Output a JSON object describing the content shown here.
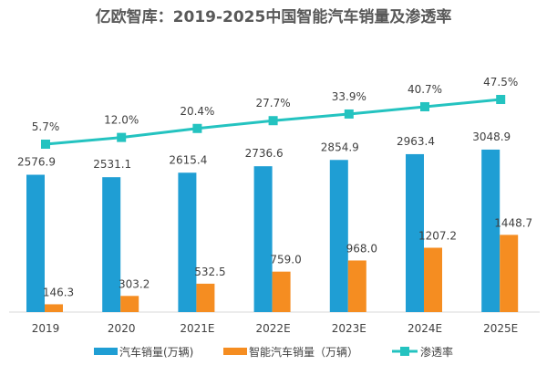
{
  "chart_data": {
    "type": "bar",
    "title": "亿欧智库：2019-2025中国智能汽车销量及渗透率",
    "categories": [
      "2019",
      "2020",
      "2021E",
      "2022E",
      "2023E",
      "2024E",
      "2025E"
    ],
    "series": [
      {
        "name": "汽车销量(万辆)",
        "type": "bar",
        "color": "#1f9ed4",
        "values": [
          2576.9,
          2531.1,
          2615.4,
          2736.6,
          2854.9,
          2963.4,
          3048.9
        ],
        "labels": [
          "2576.9",
          "2531.1",
          "2615.4",
          "2736.6",
          "2854.9",
          "2963.4",
          "3048.9"
        ]
      },
      {
        "name": "智能汽车销量（万辆）",
        "type": "bar",
        "color": "#f58d21",
        "values": [
          146.3,
          303.2,
          532.5,
          759.0,
          968.0,
          1207.2,
          1448.7
        ],
        "labels": [
          "146.3",
          "303.2",
          "532.5",
          "759.0",
          "968.0",
          "1207.2",
          "1448.7"
        ]
      },
      {
        "name": "渗透率",
        "type": "line",
        "color": "#24c3c0",
        "values": [
          5.7,
          12.0,
          20.4,
          27.7,
          33.9,
          40.7,
          47.5
        ],
        "labels": [
          "5.7%",
          "12.0%",
          "20.4%",
          "27.7%",
          "33.9%",
          "40.7%",
          "47.5%"
        ]
      }
    ],
    "ylim": [
      0,
      5000
    ],
    "grid": false,
    "legend": "bottom"
  }
}
